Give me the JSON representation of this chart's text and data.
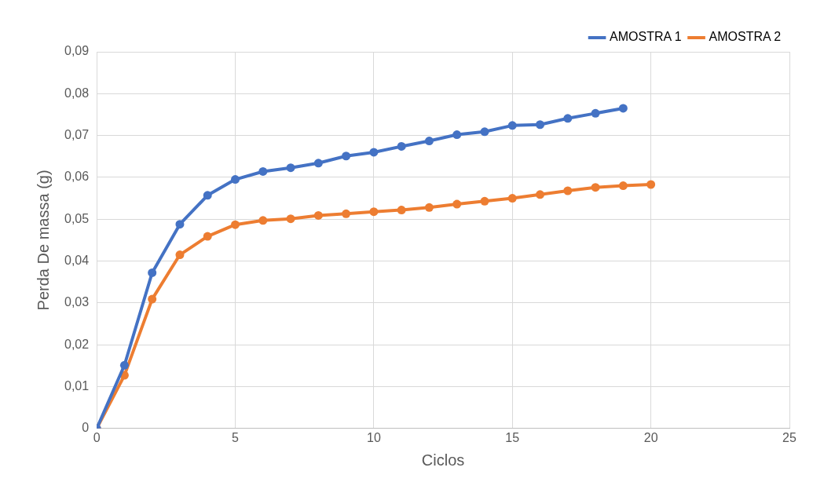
{
  "chart_data": {
    "type": "line",
    "xlabel": "Ciclos",
    "ylabel": "Perda De massa (g)",
    "xlim": [
      0,
      25
    ],
    "xticks": [
      0,
      5,
      10,
      15,
      20,
      25
    ],
    "ylim": [
      0,
      0.09
    ],
    "yticks": [
      {
        "value": 0,
        "label": "0"
      },
      {
        "value": 0.01,
        "label": "0,01"
      },
      {
        "value": 0.02,
        "label": "0,02"
      },
      {
        "value": 0.03,
        "label": "0,03"
      },
      {
        "value": 0.04,
        "label": "0,04"
      },
      {
        "value": 0.05,
        "label": "0,05"
      },
      {
        "value": 0.06,
        "label": "0,06"
      },
      {
        "value": 0.07,
        "label": "0,07"
      },
      {
        "value": 0.08,
        "label": "0,08"
      },
      {
        "value": 0.09,
        "label": "0,09"
      }
    ],
    "grid": true,
    "legend": "top right",
    "marker": "circle",
    "line_style": "solid",
    "series": [
      {
        "name": "AMOSTRA 1",
        "color": "#4472c4",
        "x": [
          0,
          1,
          2,
          3,
          4,
          5,
          6,
          7,
          8,
          9,
          10,
          11,
          12,
          13,
          14,
          15,
          16,
          17,
          18,
          19
        ],
        "values": [
          0,
          0.0151,
          0.0372,
          0.0488,
          0.0557,
          0.0595,
          0.0614,
          0.0623,
          0.0634,
          0.0651,
          0.066,
          0.0674,
          0.0687,
          0.0702,
          0.0709,
          0.0724,
          0.0726,
          0.0741,
          0.0753,
          0.0765
        ]
      },
      {
        "name": "AMOSTRA 2",
        "color": "#ed7d31",
        "x": [
          0,
          1,
          2,
          3,
          4,
          5,
          6,
          7,
          8,
          9,
          10,
          11,
          12,
          13,
          14,
          15,
          16,
          17,
          18,
          19,
          20
        ],
        "values": [
          0,
          0.0127,
          0.0309,
          0.0415,
          0.0459,
          0.0487,
          0.0497,
          0.0501,
          0.0509,
          0.0513,
          0.0518,
          0.0522,
          0.0528,
          0.0536,
          0.0543,
          0.055,
          0.0559,
          0.0568,
          0.0576,
          0.058,
          0.0583
        ]
      }
    ]
  }
}
